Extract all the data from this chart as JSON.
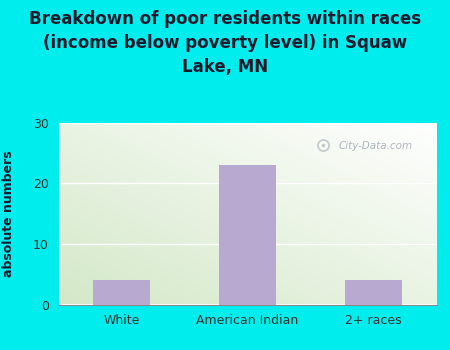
{
  "categories": [
    "White",
    "American Indian",
    "2+ races"
  ],
  "values": [
    4,
    23,
    4
  ],
  "bar_color": "#b8a9d0",
  "title": "Breakdown of poor residents within races\n(income below poverty level) in Squaw\nLake, MN",
  "ylabel": "absolute numbers",
  "ylim": [
    0,
    30
  ],
  "yticks": [
    0,
    10,
    20,
    30
  ],
  "bg_outer": "#00edee",
  "title_fontsize": 12,
  "axis_label_fontsize": 9,
  "tick_fontsize": 9,
  "watermark_text": "City-Data.com",
  "watermark_color": "#a0aab4",
  "bar_width": 0.45,
  "title_color": "#1a1a2e",
  "grid_color": "#ffffff",
  "tick_color": "#333333"
}
